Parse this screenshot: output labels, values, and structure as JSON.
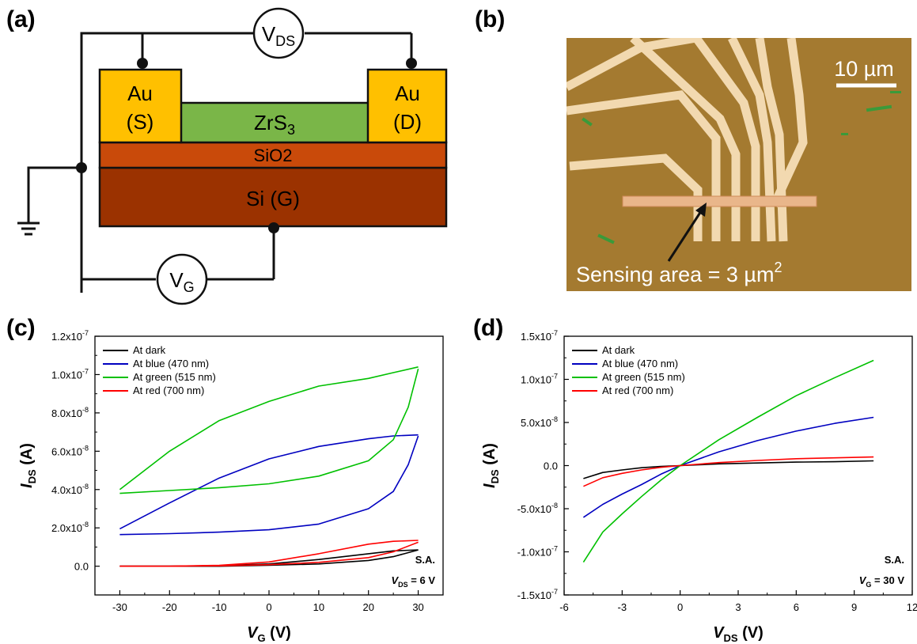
{
  "panels": {
    "a": "(a)",
    "b": "(b)",
    "c": "(c)",
    "d": "(d)"
  },
  "schematic": {
    "vds_symbol": "V",
    "vds_sub": "DS",
    "vg_symbol": "V",
    "vg_sub": "G",
    "source_metal": "Au",
    "source_tag": "(S)",
    "drain_metal": "Au",
    "drain_tag": "(D)",
    "channel_base": "ZrS",
    "channel_sub": "3",
    "oxide_label": "SiO2",
    "substrate_label": "Si (G)",
    "colors": {
      "gold": "#ffc000",
      "channel": "#7ab648",
      "oxide": "#c94a0a",
      "substrate": "#9b3200"
    }
  },
  "micrograph": {
    "scale_label": "10 µm",
    "annotation_text": "Sensing area = 3 µm",
    "annotation_sup": "2",
    "colors": {
      "background": "#a47a30",
      "electrode": "#f2d9b0"
    }
  },
  "chart_data": [
    {
      "type": "line",
      "ylabel_symbol": "I",
      "ylabel_sub": "DS",
      "ylabel_unit": " (A)",
      "xlabel_symbol": "V",
      "xlabel_sub": "G",
      "xlabel_unit": " (V)",
      "xlim": [
        -35,
        35
      ],
      "ylim": [
        -1.5e-08,
        1.2e-07
      ],
      "xticks": [
        -30,
        -20,
        -10,
        0,
        10,
        20,
        30
      ],
      "xtick_labels": [
        "-30",
        "-20",
        "-10",
        "0",
        "10",
        "20",
        "30"
      ],
      "yticks": [
        0,
        2e-08,
        4e-08,
        6e-08,
        8e-08,
        1e-07,
        1.2e-07
      ],
      "ytick_labels": [
        "0.0",
        "2.0x10-8",
        "4.0x10-8",
        "6.0x10-8",
        "8.0x10-8",
        "1.0x10-7",
        "1.2x10-7"
      ],
      "legend_position": "top-left",
      "annotation_1": "S.A.",
      "annotation_2_symbol": "V",
      "annotation_2_sub": "DS",
      "annotation_2_value": " = 6 V",
      "series": [
        {
          "name": "At dark",
          "color": "#000000",
          "forward": {
            "x": [
              -30,
              -20,
              -10,
              0,
              10,
              20,
              25,
              30
            ],
            "y": [
              0,
              0,
              0,
              5e-10,
              1.2e-09,
              3e-09,
              5e-09,
              8.5e-09
            ]
          },
          "reverse": {
            "x": [
              30,
              25,
              20,
              10,
              0,
              -10,
              -20,
              -30
            ],
            "y": [
              8.5e-09,
              8e-09,
              6.5e-09,
              3.5e-09,
              1.2e-09,
              3e-10,
              0,
              0
            ]
          }
        },
        {
          "name": "At blue (470 nm)",
          "color": "#0000c0",
          "forward": {
            "x": [
              -30,
              -20,
              -10,
              0,
              10,
              20,
              25,
              28,
              30
            ],
            "y": [
              1.65e-08,
              1.7e-08,
              1.78e-08,
              1.9e-08,
              2.2e-08,
              3e-08,
              3.9e-08,
              5.3e-08,
              6.8e-08
            ]
          },
          "reverse": {
            "x": [
              30,
              25,
              20,
              10,
              0,
              -10,
              -20,
              -30
            ],
            "y": [
              6.85e-08,
              6.8e-08,
              6.65e-08,
              6.25e-08,
              5.6e-08,
              4.6e-08,
              3.3e-08,
              1.95e-08
            ]
          }
        },
        {
          "name": "At green (515 nm)",
          "color": "#00c000",
          "forward": {
            "x": [
              -30,
              -20,
              -10,
              0,
              10,
              20,
              25,
              28,
              30
            ],
            "y": [
              3.8e-08,
              3.95e-08,
              4.1e-08,
              4.3e-08,
              4.7e-08,
              5.5e-08,
              6.6e-08,
              8.3e-08,
              1.03e-07
            ]
          },
          "reverse": {
            "x": [
              30,
              25,
              20,
              10,
              0,
              -10,
              -20,
              -30
            ],
            "y": [
              1.04e-07,
              1.01e-07,
              9.8e-08,
              9.4e-08,
              8.6e-08,
              7.6e-08,
              6e-08,
              4e-08
            ]
          }
        },
        {
          "name": "At red (700 nm)",
          "color": "#ff0000",
          "forward": {
            "x": [
              -30,
              -20,
              -10,
              0,
              10,
              20,
              25,
              30
            ],
            "y": [
              0,
              0,
              2e-10,
              8e-10,
              2e-09,
              4.5e-09,
              7.5e-09,
              1.25e-08
            ]
          },
          "reverse": {
            "x": [
              30,
              25,
              20,
              10,
              0,
              -10,
              -20,
              -30
            ],
            "y": [
              1.35e-08,
              1.3e-08,
              1.15e-08,
              6.5e-09,
              2.2e-09,
              5e-10,
              0,
              0
            ]
          }
        }
      ]
    },
    {
      "type": "line",
      "ylabel_symbol": "I",
      "ylabel_sub": "DS",
      "ylabel_unit": " (A)",
      "xlabel_symbol": "V",
      "xlabel_sub": "DS",
      "xlabel_unit": " (V)",
      "xlim": [
        -6,
        12
      ],
      "ylim": [
        -1.5e-07,
        1.5e-07
      ],
      "xticks": [
        -6,
        -3,
        0,
        3,
        6,
        9,
        12
      ],
      "xtick_labels": [
        "-6",
        "-3",
        "0",
        "3",
        "6",
        "9",
        "12"
      ],
      "yticks": [
        -1.5e-07,
        -1e-07,
        -5e-08,
        0,
        5e-08,
        1e-07,
        1.5e-07
      ],
      "ytick_labels": [
        "-1.5x10-7",
        "-1.0x10-7",
        "-5.0x10-8",
        "0.0",
        "5.0x10-8",
        "1.0x10-7",
        "1.5x10-7"
      ],
      "legend_position": "top-left",
      "annotation_1": "S.A.",
      "annotation_2_symbol": "V",
      "annotation_2_sub": "G",
      "annotation_2_value": " = 30 V",
      "series": [
        {
          "name": "At dark",
          "color": "#000000",
          "x": [
            -5,
            -4,
            -3,
            -2,
            -1,
            0,
            2,
            4,
            6,
            8,
            10
          ],
          "y": [
            -1.5e-08,
            -8e-09,
            -5e-09,
            -2.5e-09,
            -1e-09,
            0,
            2e-09,
            3e-09,
            4e-09,
            4.5e-09,
            5.5e-09
          ]
        },
        {
          "name": "At blue (470 nm)",
          "color": "#0000c0",
          "x": [
            -5,
            -4,
            -3,
            -2,
            -1,
            0,
            2,
            4,
            6,
            8,
            10
          ],
          "y": [
            -6e-08,
            -4.5e-08,
            -3.3e-08,
            -2.2e-08,
            -1e-08,
            0,
            1.6e-08,
            2.9e-08,
            4e-08,
            4.9e-08,
            5.6e-08
          ]
        },
        {
          "name": "At green (515 nm)",
          "color": "#00c000",
          "x": [
            -5,
            -4,
            -3,
            -2,
            -1,
            0,
            2,
            4,
            6,
            8,
            10
          ],
          "y": [
            -1.12e-07,
            -7.7e-08,
            -5.6e-08,
            -3.6e-08,
            -1.7e-08,
            0,
            3e-08,
            5.6e-08,
            8.1e-08,
            1.02e-07,
            1.22e-07
          ]
        },
        {
          "name": "At red (700 nm)",
          "color": "#ff0000",
          "x": [
            -5,
            -4,
            -3,
            -2,
            -1,
            0,
            2,
            4,
            6,
            8,
            10
          ],
          "y": [
            -2.4e-08,
            -1.4e-08,
            -9e-09,
            -5e-09,
            -2e-09,
            0,
            3.5e-09,
            6e-09,
            8e-09,
            9e-09,
            1e-08
          ]
        }
      ]
    }
  ]
}
